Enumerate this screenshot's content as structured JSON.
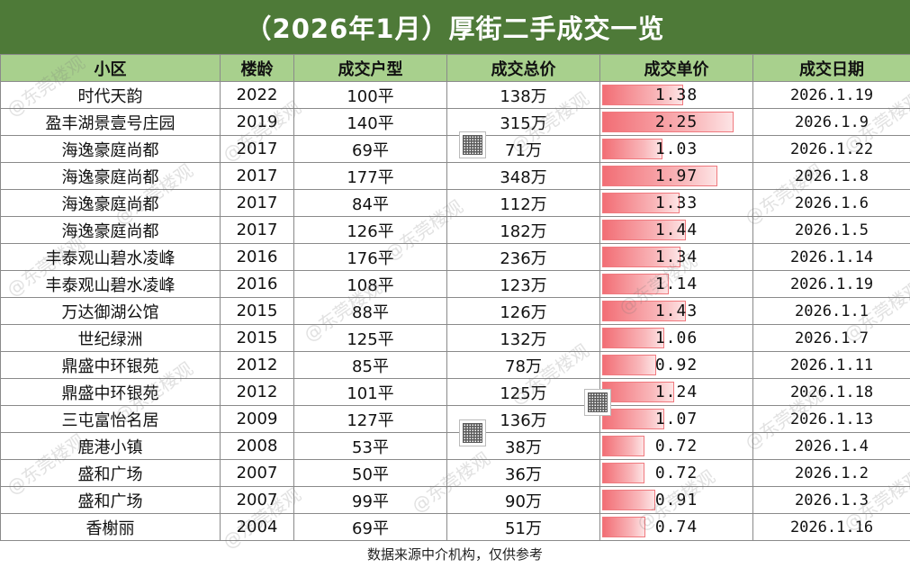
{
  "title": "（2026年1月）厚街二手成交一览",
  "headers": [
    "小区",
    "楼龄",
    "成交户型",
    "成交总价",
    "成交单价",
    "成交日期"
  ],
  "rows": [
    {
      "community": "时代天韵",
      "year": "2022",
      "size": "100平",
      "total": "138万",
      "unit_price": "1.38",
      "unit_value": 1.38,
      "date": "2026.1.19"
    },
    {
      "community": "盈丰湖景壹号庄园",
      "year": "2019",
      "size": "140平",
      "total": "315万",
      "unit_price": "2.25",
      "unit_value": 2.25,
      "date": "2026.1.9"
    },
    {
      "community": "海逸豪庭尚都",
      "year": "2017",
      "size": "69平",
      "total": "71万",
      "unit_price": "1.03",
      "unit_value": 1.03,
      "date": "2026.1.22"
    },
    {
      "community": "海逸豪庭尚都",
      "year": "2017",
      "size": "177平",
      "total": "348万",
      "unit_price": "1.97",
      "unit_value": 1.97,
      "date": "2026.1.8"
    },
    {
      "community": "海逸豪庭尚都",
      "year": "2017",
      "size": "84平",
      "total": "112万",
      "unit_price": "1.33",
      "unit_value": 1.33,
      "date": "2026.1.6"
    },
    {
      "community": "海逸豪庭尚都",
      "year": "2017",
      "size": "126平",
      "total": "182万",
      "unit_price": "1.44",
      "unit_value": 1.44,
      "date": "2026.1.5"
    },
    {
      "community": "丰泰观山碧水凌峰",
      "year": "2016",
      "size": "176平",
      "total": "236万",
      "unit_price": "1.34",
      "unit_value": 1.34,
      "date": "2026.1.14"
    },
    {
      "community": "丰泰观山碧水凌峰",
      "year": "2016",
      "size": "108平",
      "total": "123万",
      "unit_price": "1.14",
      "unit_value": 1.14,
      "date": "2026.1.19"
    },
    {
      "community": "万达御湖公馆",
      "year": "2015",
      "size": "88平",
      "total": "126万",
      "unit_price": "1.43",
      "unit_value": 1.43,
      "date": "2026.1.1"
    },
    {
      "community": "世纪绿洲",
      "year": "2015",
      "size": "125平",
      "total": "132万",
      "unit_price": "1.06",
      "unit_value": 1.06,
      "date": "2026.1.7"
    },
    {
      "community": "鼎盛中环银苑",
      "year": "2012",
      "size": "85平",
      "total": "78万",
      "unit_price": "0.92",
      "unit_value": 0.92,
      "date": "2026.1.11"
    },
    {
      "community": "鼎盛中环银苑",
      "year": "2012",
      "size": "101平",
      "total": "125万",
      "unit_price": "1.24",
      "unit_value": 1.24,
      "date": "2026.1.18"
    },
    {
      "community": "三屯富怡名居",
      "year": "2009",
      "size": "127平",
      "total": "136万",
      "unit_price": "1.07",
      "unit_value": 1.07,
      "date": "2026.1.13"
    },
    {
      "community": "鹿港小镇",
      "year": "2008",
      "size": "53平",
      "total": "38万",
      "unit_price": "0.72",
      "unit_value": 0.72,
      "date": "2026.1.4"
    },
    {
      "community": "盛和广场",
      "year": "2007",
      "size": "50平",
      "total": "36万",
      "unit_price": "0.72",
      "unit_value": 0.72,
      "date": "2026.1.2"
    },
    {
      "community": "盛和广场",
      "year": "2007",
      "size": "99平",
      "total": "90万",
      "unit_price": "0.91",
      "unit_value": 0.91,
      "date": "2026.1.3"
    },
    {
      "community": "香榭丽",
      "year": "2004",
      "size": "69平",
      "total": "51万",
      "unit_price": "0.74",
      "unit_value": 0.74,
      "date": "2026.1.16"
    }
  ],
  "footer": "数据来源中介机构，仅供参考",
  "watermark": "@东莞楼观",
  "colors": {
    "title_bg": "#4e7a38",
    "header_bg": "#a8d08d",
    "bar": "#f26e75"
  }
}
